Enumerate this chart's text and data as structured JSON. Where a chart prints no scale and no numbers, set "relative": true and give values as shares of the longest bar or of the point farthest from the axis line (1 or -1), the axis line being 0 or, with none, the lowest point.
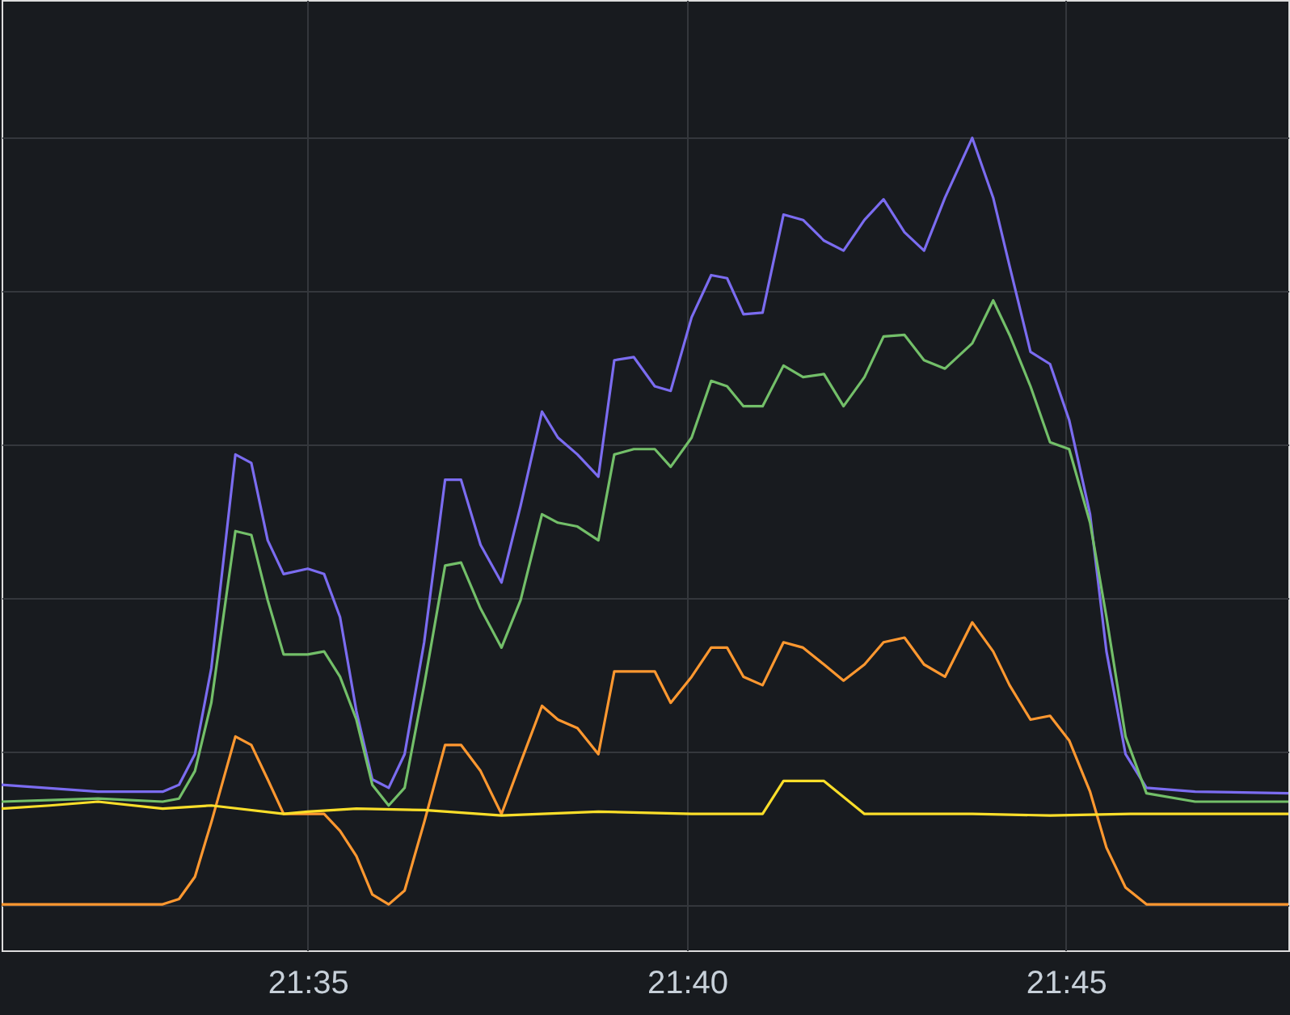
{
  "chart_data": {
    "type": "line",
    "relative": true,
    "grid": true,
    "legend": false,
    "marker": "none",
    "line_style": "solid",
    "xlim": [
      21.516,
      21.7989
    ],
    "xticks": [
      {
        "value": 21.5833,
        "label": "21:35"
      },
      {
        "value": 21.6667,
        "label": "21:40"
      },
      {
        "value": 21.75,
        "label": "21:45"
      }
    ],
    "x": [
      21.516,
      21.5372,
      21.5514,
      21.555,
      21.5585,
      21.5621,
      21.5674,
      21.5709,
      21.5745,
      21.578,
      21.5833,
      21.5869,
      21.5904,
      21.594,
      21.5975,
      21.6011,
      21.6046,
      21.6089,
      21.6135,
      21.617,
      21.6213,
      21.6259,
      21.6301,
      21.6348,
      21.6383,
      21.6426,
      21.6472,
      21.6507,
      21.655,
      21.6596,
      21.6631,
      21.6677,
      21.672,
      21.6755,
      21.6791,
      21.6833,
      21.6879,
      21.6922,
      21.6968,
      21.7011,
      21.7057,
      21.7099,
      21.7145,
      21.7188,
      21.7234,
      21.7294,
      21.734,
      21.7376,
      21.7422,
      21.7465,
      21.7507,
      21.7553,
      21.7589,
      21.7631,
      21.7677,
      21.7784,
      21.7989
    ],
    "series": [
      {
        "color": "#7b6cf0",
        "values": [
          0.156,
          0.147,
          0.147,
          0.156,
          0.196,
          0.308,
          0.587,
          0.576,
          0.475,
          0.431,
          0.438,
          0.431,
          0.375,
          0.252,
          0.163,
          0.152,
          0.196,
          0.342,
          0.554,
          0.554,
          0.469,
          0.42,
          0.52,
          0.643,
          0.609,
          0.587,
          0.558,
          0.71,
          0.714,
          0.676,
          0.67,
          0.766,
          0.821,
          0.817,
          0.77,
          0.772,
          0.9,
          0.893,
          0.866,
          0.853,
          0.893,
          0.92,
          0.877,
          0.853,
          0.922,
          1,
          0.922,
          0.833,
          0.721,
          0.705,
          0.632,
          0.509,
          0.33,
          0.196,
          0.152,
          0.147,
          0.145
        ]
      },
      {
        "color": "#73bf69",
        "values": [
          0.134,
          0.138,
          0.134,
          0.138,
          0.174,
          0.263,
          0.487,
          0.482,
          0.397,
          0.326,
          0.326,
          0.33,
          0.297,
          0.241,
          0.156,
          0.129,
          0.152,
          0.286,
          0.442,
          0.446,
          0.386,
          0.335,
          0.397,
          0.509,
          0.498,
          0.493,
          0.475,
          0.587,
          0.594,
          0.594,
          0.571,
          0.609,
          0.683,
          0.676,
          0.65,
          0.65,
          0.703,
          0.688,
          0.692,
          0.65,
          0.688,
          0.741,
          0.743,
          0.71,
          0.699,
          0.732,
          0.788,
          0.743,
          0.676,
          0.603,
          0.594,
          0.498,
          0.375,
          0.219,
          0.145,
          0.134,
          0.134
        ]
      },
      {
        "color": "#ff9830",
        "values": [
          0,
          0,
          0,
          0.007,
          0.036,
          0.107,
          0.219,
          0.208,
          0.163,
          0.118,
          0.118,
          0.118,
          0.096,
          0.063,
          0.013,
          0,
          0.018,
          0.107,
          0.208,
          0.208,
          0.174,
          0.118,
          0.185,
          0.259,
          0.241,
          0.23,
          0.196,
          0.304,
          0.304,
          0.304,
          0.263,
          0.297,
          0.335,
          0.335,
          0.297,
          0.286,
          0.342,
          0.335,
          0.313,
          0.292,
          0.313,
          0.342,
          0.348,
          0.313,
          0.297,
          0.368,
          0.33,
          0.286,
          0.241,
          0.246,
          0.214,
          0.147,
          0.074,
          0.022,
          0,
          0,
          0
        ]
      },
      {
        "color": "#fade2a",
        "x": [
          21.516,
          21.5266,
          21.5372,
          21.5514,
          21.5621,
          21.578,
          21.5833,
          21.594,
          21.6089,
          21.6259,
          21.6472,
          21.6677,
          21.6833,
          21.6879,
          21.6968,
          21.7057,
          21.7294,
          21.7465,
          21.7642,
          21.7989
        ],
        "values": [
          0.125,
          0.129,
          0.134,
          0.125,
          0.129,
          0.118,
          0.121,
          0.125,
          0.123,
          0.116,
          0.121,
          0.118,
          0.118,
          0.161,
          0.161,
          0.118,
          0.118,
          0.116,
          0.118,
          0.118
        ]
      }
    ]
  }
}
